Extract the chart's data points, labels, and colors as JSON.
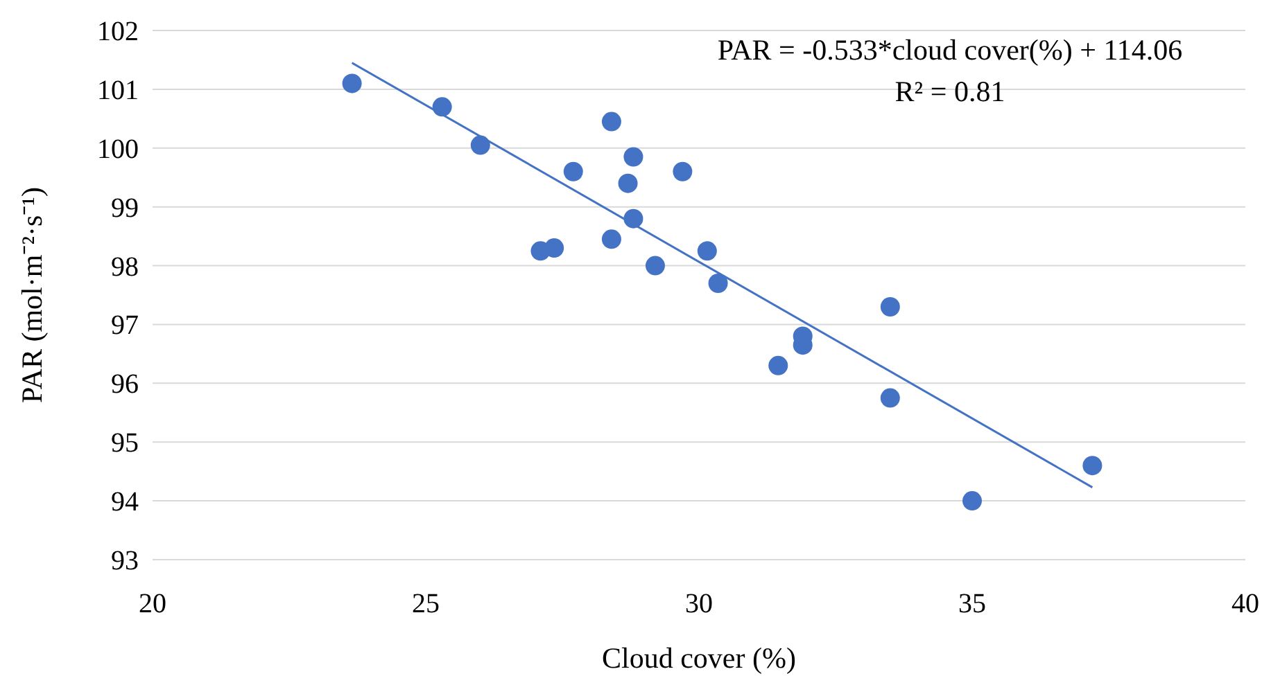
{
  "chart_data": {
    "type": "scatter",
    "xlabel": "Cloud cover (%)",
    "ylabel": "PAR (mol·m⁻²·s⁻¹)",
    "xlim": [
      20,
      40
    ],
    "xticks": [
      20,
      25,
      30,
      35,
      40
    ],
    "ylim": [
      93,
      102
    ],
    "yticks": [
      93,
      94,
      95,
      96,
      97,
      98,
      99,
      100,
      101,
      102
    ],
    "grid": "y",
    "annotations": [
      "PAR = -0.533*cloud cover(%) + 114.06",
      "R² = 0.81"
    ],
    "series": [
      {
        "marker": "circle",
        "color": "#4472c4",
        "x": [
          23.65,
          25.3,
          26.0,
          27.7,
          28.4,
          28.8,
          28.7,
          28.8,
          29.7,
          27.1,
          27.35,
          28.4,
          29.2,
          30.15,
          30.35,
          31.9,
          31.9,
          31.45,
          33.5,
          33.5,
          35.0,
          37.2
        ],
        "values": [
          101.1,
          100.7,
          100.05,
          99.6,
          100.45,
          99.85,
          99.4,
          98.8,
          99.6,
          98.25,
          98.3,
          98.45,
          98.0,
          98.25,
          97.7,
          96.8,
          96.65,
          96.3,
          97.3,
          95.75,
          94.0,
          94.6
        ]
      },
      {
        "type": "line",
        "color": "#4472c4",
        "line_style": "solid",
        "x": [
          23.65,
          37.2
        ],
        "values": [
          101.45,
          94.23
        ]
      }
    ]
  }
}
